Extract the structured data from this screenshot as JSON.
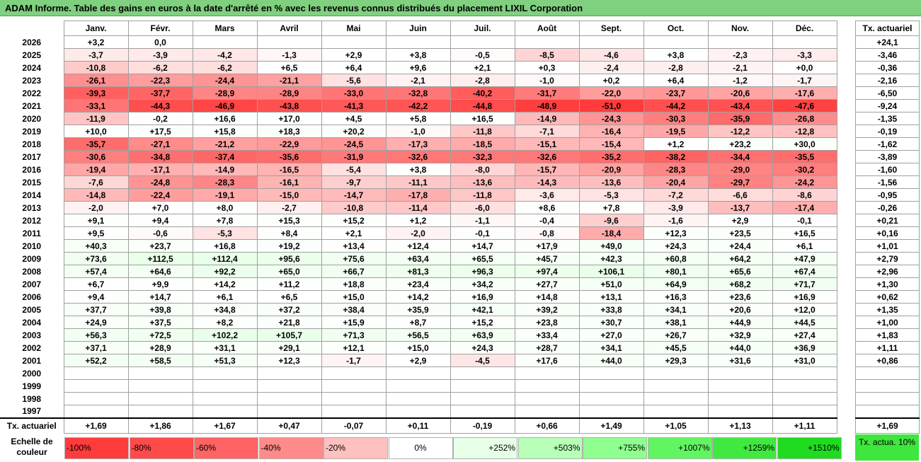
{
  "title": "ADAM Informe. Table des gains en euros à la date d'arrêté en % avec les revenus connus distribués du placement LIXIL Corporation",
  "chart_data": {
    "type": "table",
    "months": [
      "Janv.",
      "Févr.",
      "Mars",
      "Avril",
      "Mai",
      "Juin",
      "Juil.",
      "Août",
      "Sept.",
      "Oct.",
      "Nov.",
      "Déc."
    ],
    "side_header": "Tx. actuariel",
    "rows": [
      {
        "year": "2026",
        "values": [
          "+3,2",
          "0,0",
          "",
          "",
          "",
          "",
          "",
          "",
          "",
          "",
          "",
          ""
        ],
        "rate": "+24,1"
      },
      {
        "year": "2025",
        "values": [
          "-3,7",
          "-3,9",
          "-4,2",
          "-1,3",
          "+2,9",
          "+3,8",
          "-0,5",
          "-8,5",
          "-4,6",
          "+3,8",
          "-2,3",
          "-3,3"
        ],
        "rate": "-3,46"
      },
      {
        "year": "2024",
        "values": [
          "-10,8",
          "-6,2",
          "-6,2",
          "+6,5",
          "+6,4",
          "+9,6",
          "+2,1",
          "+0,3",
          "-2,4",
          "-2,8",
          "-2,1",
          "+0,0"
        ],
        "rate": "-0,36"
      },
      {
        "year": "2023",
        "values": [
          "-26,1",
          "-22,3",
          "-24,4",
          "-21,1",
          "-5,6",
          "-2,1",
          "-2,8",
          "-1,0",
          "+0,2",
          "+6,4",
          "-1,2",
          "-1,7"
        ],
        "rate": "-2,16"
      },
      {
        "year": "2022",
        "values": [
          "-39,3",
          "-37,7",
          "-28,9",
          "-28,9",
          "-33,0",
          "-32,8",
          "-40,2",
          "-31,7",
          "-22,0",
          "-23,7",
          "-20,6",
          "-17,6"
        ],
        "rate": "-6,50"
      },
      {
        "year": "2021",
        "values": [
          "-33,1",
          "-44,3",
          "-46,9",
          "-43,8",
          "-41,3",
          "-42,2",
          "-44,8",
          "-48,9",
          "-51,0",
          "-44,2",
          "-43,4",
          "-47,6"
        ],
        "rate": "-9,24"
      },
      {
        "year": "2020",
        "values": [
          "-11,9",
          "-0,2",
          "+16,6",
          "+17,0",
          "+4,5",
          "+5,8",
          "+16,5",
          "-14,9",
          "-24,3",
          "-30,3",
          "-35,9",
          "-26,8"
        ],
        "rate": "-1,35"
      },
      {
        "year": "2019",
        "values": [
          "+10,0",
          "+17,5",
          "+15,8",
          "+18,3",
          "+20,2",
          "-1,0",
          "-11,8",
          "-7,1",
          "-16,4",
          "-19,5",
          "-12,2",
          "-12,8"
        ],
        "rate": "-0,19"
      },
      {
        "year": "2018",
        "values": [
          "-35,7",
          "-27,1",
          "-21,2",
          "-22,9",
          "-24,5",
          "-17,3",
          "-18,5",
          "-15,1",
          "-15,4",
          "+1,2",
          "+23,2",
          "+30,0"
        ],
        "rate": "-1,62"
      },
      {
        "year": "2017",
        "values": [
          "-30,6",
          "-34,8",
          "-37,4",
          "-35,6",
          "-31,9",
          "-32,6",
          "-32,3",
          "-32,6",
          "-35,2",
          "-38,2",
          "-34,4",
          "-35,5"
        ],
        "rate": "-3,89"
      },
      {
        "year": "2016",
        "values": [
          "-19,4",
          "-17,1",
          "-14,9",
          "-16,5",
          "-5,4",
          "+3,8",
          "-8,0",
          "-15,7",
          "-20,9",
          "-28,3",
          "-29,0",
          "-30,2"
        ],
        "rate": "-1,60"
      },
      {
        "year": "2015",
        "values": [
          "-7,6",
          "-24,8",
          "-28,3",
          "-16,1",
          "-9,7",
          "-11,1",
          "-13,6",
          "-14,3",
          "-13,6",
          "-20,4",
          "-29,7",
          "-24,2"
        ],
        "rate": "-1,56"
      },
      {
        "year": "2014",
        "values": [
          "-14,8",
          "-22,4",
          "-19,1",
          "-15,0",
          "-14,7",
          "-17,8",
          "-11,8",
          "-3,6",
          "-5,3",
          "-7,2",
          "-6,6",
          "-8,6"
        ],
        "rate": "-0,95"
      },
      {
        "year": "2013",
        "values": [
          "-2,0",
          "+7,0",
          "+8,0",
          "-2,7",
          "-10,8",
          "-11,4",
          "-6,0",
          "+8,6",
          "+7,8",
          "-3,9",
          "-13,7",
          "-17,4"
        ],
        "rate": "-0,26"
      },
      {
        "year": "2012",
        "values": [
          "+9,1",
          "+9,4",
          "+7,8",
          "+15,3",
          "+15,2",
          "+1,2",
          "-1,1",
          "-0,4",
          "-9,6",
          "-1,6",
          "+2,9",
          "-0,1"
        ],
        "rate": "+0,21"
      },
      {
        "year": "2011",
        "values": [
          "+9,5",
          "-0,6",
          "-5,3",
          "+8,4",
          "+2,1",
          "-2,0",
          "-0,1",
          "-0,8",
          "-18,4",
          "+12,3",
          "+23,5",
          "+16,5"
        ],
        "rate": "+0,16"
      },
      {
        "year": "2010",
        "values": [
          "+40,3",
          "+23,7",
          "+16,8",
          "+19,2",
          "+13,4",
          "+12,4",
          "+14,7",
          "+17,9",
          "+49,0",
          "+24,3",
          "+24,4",
          "+6,1"
        ],
        "rate": "+1,01"
      },
      {
        "year": "2009",
        "values": [
          "+73,6",
          "+112,5",
          "+112,4",
          "+95,6",
          "+75,6",
          "+63,4",
          "+65,5",
          "+45,7",
          "+42,3",
          "+60,8",
          "+64,2",
          "+47,9"
        ],
        "rate": "+2,79"
      },
      {
        "year": "2008",
        "values": [
          "+57,4",
          "+64,6",
          "+92,2",
          "+65,0",
          "+66,7",
          "+81,3",
          "+96,3",
          "+97,4",
          "+106,1",
          "+80,1",
          "+65,6",
          "+67,4"
        ],
        "rate": "+2,96"
      },
      {
        "year": "2007",
        "values": [
          "+6,7",
          "+9,9",
          "+14,2",
          "+11,2",
          "+18,8",
          "+23,4",
          "+34,2",
          "+27,7",
          "+51,0",
          "+64,9",
          "+68,2",
          "+71,7"
        ],
        "rate": "+1,30"
      },
      {
        "year": "2006",
        "values": [
          "+9,4",
          "+14,7",
          "+6,1",
          "+6,5",
          "+15,0",
          "+14,2",
          "+16,9",
          "+14,8",
          "+13,1",
          "+16,3",
          "+23,6",
          "+16,9"
        ],
        "rate": "+0,62"
      },
      {
        "year": "2005",
        "values": [
          "+37,7",
          "+39,8",
          "+34,8",
          "+37,2",
          "+38,4",
          "+35,9",
          "+42,1",
          "+39,2",
          "+33,8",
          "+34,1",
          "+20,6",
          "+12,0"
        ],
        "rate": "+1,35"
      },
      {
        "year": "2004",
        "values": [
          "+24,9",
          "+37,5",
          "+8,2",
          "+21,8",
          "+15,9",
          "+8,7",
          "+15,2",
          "+23,8",
          "+30,7",
          "+38,1",
          "+44,9",
          "+44,5"
        ],
        "rate": "+1,00"
      },
      {
        "year": "2003",
        "values": [
          "+56,3",
          "+72,5",
          "+102,2",
          "+105,7",
          "+71,3",
          "+56,5",
          "+63,9",
          "+33,4",
          "+27,0",
          "+26,7",
          "+32,9",
          "+27,4"
        ],
        "rate": "+1,83"
      },
      {
        "year": "2002",
        "values": [
          "+37,1",
          "+28,9",
          "+31,1",
          "+29,1",
          "+12,1",
          "+15,0",
          "+24,3",
          "+28,7",
          "+34,1",
          "+45,5",
          "+44,0",
          "+36,9"
        ],
        "rate": "+1,11"
      },
      {
        "year": "2001",
        "values": [
          "+52,2",
          "+58,5",
          "+51,3",
          "+12,3",
          "-1,7",
          "+2,9",
          "-4,5",
          "+17,6",
          "+44,0",
          "+29,3",
          "+31,6",
          "+31,0"
        ],
        "rate": "+0,86"
      },
      {
        "year": "2000",
        "values": [
          "",
          "",
          "",
          "",
          "",
          "",
          "",
          "",
          "",
          "",
          "",
          ""
        ],
        "rate": ""
      },
      {
        "year": "1999",
        "values": [
          "",
          "",
          "",
          "",
          "",
          "",
          "",
          "",
          "",
          "",
          "",
          ""
        ],
        "rate": ""
      },
      {
        "year": "1998",
        "values": [
          "",
          "",
          "",
          "",
          "",
          "",
          "",
          "",
          "",
          "",
          "",
          ""
        ],
        "rate": ""
      },
      {
        "year": "1997",
        "values": [
          "",
          "",
          "",
          "",
          "",
          "",
          "",
          "",
          "",
          "",
          "",
          ""
        ],
        "rate": ""
      }
    ],
    "summary": {
      "label": "Tx. actuariel",
      "values": [
        "+1,69",
        "+1,86",
        "+1,67",
        "+0,47",
        "-0,07",
        "+0,11",
        "-0,19",
        "+0,66",
        "+1,49",
        "+1,05",
        "+1,13",
        "+1,11"
      ],
      "rate": "+1,69"
    }
  },
  "legend": {
    "label": "Echelle de couleur",
    "items": [
      {
        "text": "-100%",
        "color": "#ff3b3b",
        "kind": "neg"
      },
      {
        "text": "-80%",
        "color": "#ff4a4a",
        "kind": "neg"
      },
      {
        "text": "-60%",
        "color": "#ff6363",
        "kind": "neg"
      },
      {
        "text": "-40%",
        "color": "#ff8a8a",
        "kind": "neg"
      },
      {
        "text": "-20%",
        "color": "#ffc0c0",
        "kind": "neg"
      },
      {
        "text": "0%",
        "color": "#ffffff",
        "kind": "zero"
      },
      {
        "text": "+252%",
        "color": "#e6ffe6",
        "kind": "pos"
      },
      {
        "text": "+503%",
        "color": "#b8ffb8",
        "kind": "pos"
      },
      {
        "text": "+755%",
        "color": "#8fff8f",
        "kind": "pos"
      },
      {
        "text": "+1007%",
        "color": "#62f562",
        "kind": "pos"
      },
      {
        "text": "+1259%",
        "color": "#3fe93f",
        "kind": "pos"
      },
      {
        "text": "+1510%",
        "color": "#20dc20",
        "kind": "pos"
      }
    ],
    "side": "Tx. actua. 10%",
    "side_color": "#3ee63e"
  }
}
